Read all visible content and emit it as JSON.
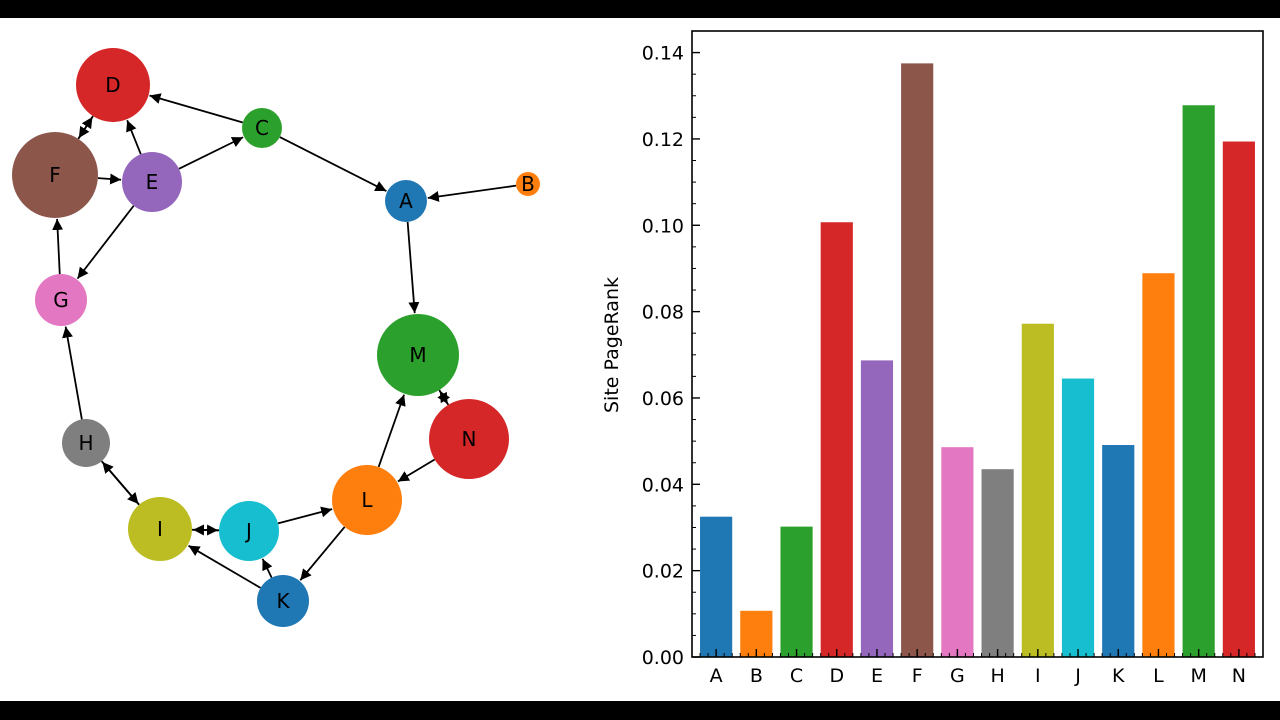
{
  "graph": {
    "nodes": [
      {
        "id": "A",
        "color": "#1f77b4"
      },
      {
        "id": "B",
        "color": "#ff7f0e"
      },
      {
        "id": "C",
        "color": "#2ca02c"
      },
      {
        "id": "D",
        "color": "#d62728"
      },
      {
        "id": "E",
        "color": "#9467bd"
      },
      {
        "id": "F",
        "color": "#8c564b"
      },
      {
        "id": "G",
        "color": "#e377c2"
      },
      {
        "id": "H",
        "color": "#7f7f7f"
      },
      {
        "id": "I",
        "color": "#bcbd22"
      },
      {
        "id": "J",
        "color": "#17becf"
      },
      {
        "id": "K",
        "color": "#1f77b4"
      },
      {
        "id": "L",
        "color": "#ff7f0e"
      },
      {
        "id": "M",
        "color": "#2ca02c"
      },
      {
        "id": "N",
        "color": "#d62728"
      }
    ],
    "edges": [
      [
        "B",
        "A"
      ],
      [
        "C",
        "A"
      ],
      [
        "C",
        "D"
      ],
      [
        "E",
        "C"
      ],
      [
        "E",
        "D"
      ],
      [
        "E",
        "G"
      ],
      [
        "F",
        "E"
      ],
      [
        "F",
        "D"
      ],
      [
        "D",
        "F"
      ],
      [
        "G",
        "F"
      ],
      [
        "H",
        "G"
      ],
      [
        "H",
        "I"
      ],
      [
        "I",
        "H"
      ],
      [
        "I",
        "J"
      ],
      [
        "J",
        "I"
      ],
      [
        "J",
        "L"
      ],
      [
        "K",
        "I"
      ],
      [
        "K",
        "J"
      ],
      [
        "L",
        "K"
      ],
      [
        "L",
        "M"
      ],
      [
        "N",
        "L"
      ],
      [
        "N",
        "M"
      ],
      [
        "M",
        "N"
      ],
      [
        "A",
        "M"
      ]
    ]
  },
  "chart_data": {
    "type": "bar",
    "title": "",
    "xlabel": "",
    "ylabel": "Site PageRank",
    "categories": [
      "A",
      "B",
      "C",
      "D",
      "E",
      "F",
      "G",
      "H",
      "I",
      "J",
      "K",
      "L",
      "M",
      "N"
    ],
    "values": [
      0.0325,
      0.0107,
      0.0302,
      0.1007,
      0.0687,
      0.1375,
      0.0486,
      0.0435,
      0.0772,
      0.0645,
      0.0491,
      0.0889,
      0.1278,
      0.1194
    ],
    "colors": [
      "#1f77b4",
      "#ff7f0e",
      "#2ca02c",
      "#d62728",
      "#9467bd",
      "#8c564b",
      "#e377c2",
      "#7f7f7f",
      "#bcbd22",
      "#17becf",
      "#1f77b4",
      "#ff7f0e",
      "#2ca02c",
      "#d62728"
    ],
    "yticks": [
      "0.00",
      "0.02",
      "0.04",
      "0.06",
      "0.08",
      "0.10",
      "0.12",
      "0.14"
    ],
    "ylim": [
      0,
      0.145
    ],
    "grid": false
  }
}
